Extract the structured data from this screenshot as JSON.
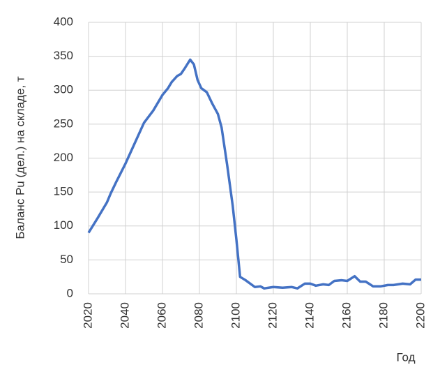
{
  "chart_data": {
    "type": "line",
    "x_label": "Год",
    "y_label": "Баланс Pu (дел.) на складе, т",
    "x": [
      2020,
      2025,
      2030,
      2032,
      2035,
      2040,
      2045,
      2050,
      2055,
      2060,
      2063,
      2065,
      2068,
      2070,
      2072,
      2075,
      2077,
      2079,
      2081,
      2084,
      2087,
      2090,
      2092,
      2095,
      2098,
      2100,
      2102,
      2105,
      2110,
      2113,
      2115,
      2120,
      2125,
      2130,
      2133,
      2137,
      2140,
      2143,
      2147,
      2150,
      2153,
      2157,
      2160,
      2164,
      2167,
      2170,
      2174,
      2178,
      2182,
      2185,
      2190,
      2194,
      2197,
      2200
    ],
    "series": [
      {
        "name": "Баланс Pu",
        "color": "#4472c4",
        "values": [
          90,
          112,
          135,
          148,
          165,
          192,
          222,
          252,
          270,
          293,
          303,
          312,
          321,
          324,
          332,
          345,
          338,
          315,
          303,
          297,
          280,
          265,
          245,
          190,
          130,
          80,
          25,
          20,
          10,
          11,
          8,
          10,
          9,
          10,
          8,
          15,
          15,
          12,
          14,
          13,
          19,
          20,
          19,
          26,
          18,
          18,
          11,
          11,
          13,
          13,
          15,
          14,
          21,
          21
        ]
      }
    ],
    "xlim": [
      2020,
      2200
    ],
    "xticks": [
      2020,
      2040,
      2060,
      2080,
      2100,
      2120,
      2140,
      2160,
      2180,
      2200
    ],
    "ylim": [
      0,
      400
    ],
    "yticks": [
      0,
      50,
      100,
      150,
      200,
      250,
      300,
      350,
      400
    ],
    "grid": true
  }
}
